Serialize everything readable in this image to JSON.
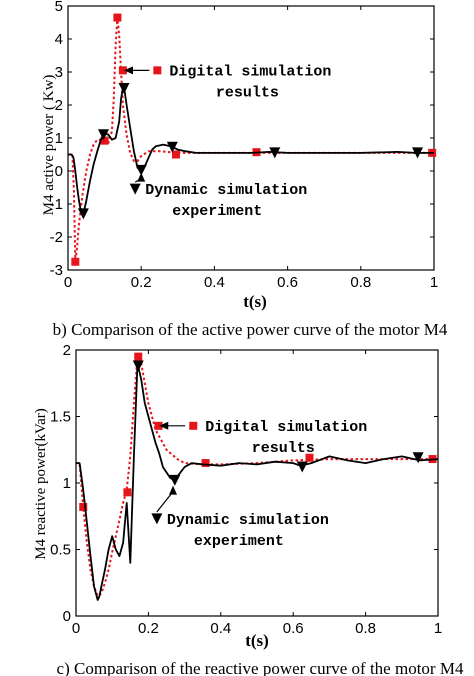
{
  "chart_data": [
    {
      "type": "line",
      "caption": "b) Comparison of the active power curve of the motor M4",
      "xlabel": "t(s)",
      "ylabel": "M4 active power ( Kw)",
      "xlim": [
        0,
        1
      ],
      "ylim": [
        -3,
        5
      ],
      "xticks": [
        "0",
        "0.2",
        "0.4",
        "0.6",
        "0.8",
        "1"
      ],
      "yticks": [
        "-3",
        "-2",
        "-1",
        "0",
        "1",
        "2",
        "3",
        "4",
        "5"
      ],
      "grid": false,
      "series": [
        {
          "name": "Digital simulation results",
          "color": "#e8141b",
          "style": "dotted",
          "marker": "square",
          "x": [
            0,
            0.008,
            0.012,
            0.016,
            0.02,
            0.024,
            0.03,
            0.04,
            0.05,
            0.06,
            0.07,
            0.08,
            0.09,
            0.1,
            0.11,
            0.12,
            0.125,
            0.13,
            0.135,
            0.14,
            0.145,
            0.15,
            0.16,
            0.17,
            0.18,
            0.19,
            0.2,
            0.22,
            0.25,
            0.3,
            0.35,
            0.4,
            0.5,
            0.6,
            0.7,
            0.8,
            0.9,
            1.0
          ],
          "y": [
            0.5,
            0.5,
            0.5,
            -0.6,
            -2.7,
            -2.4,
            -1.6,
            -0.7,
            0.0,
            0.5,
            0.8,
            0.95,
            0.95,
            0.85,
            0.85,
            1.2,
            2.2,
            3.8,
            4.65,
            4.1,
            3.0,
            2.0,
            1.1,
            0.55,
            0.3,
            0.3,
            0.45,
            0.6,
            0.6,
            0.55,
            0.55,
            0.55,
            0.55,
            0.55,
            0.55,
            0.55,
            0.55,
            0.55
          ],
          "marker_x": [
            0.02,
            0.1,
            0.135,
            0.15,
            0.295,
            0.515,
            0.995
          ],
          "marker_y": [
            -2.75,
            0.92,
            4.65,
            3.05,
            0.5,
            0.57,
            0.55
          ]
        },
        {
          "name": "Dynamic simulation experiment",
          "color": "#000000",
          "style": "solid",
          "marker": "triangle-down",
          "x": [
            0,
            0.01,
            0.015,
            0.02,
            0.025,
            0.03,
            0.035,
            0.04,
            0.045,
            0.05,
            0.06,
            0.07,
            0.08,
            0.09,
            0.1,
            0.11,
            0.12,
            0.13,
            0.14,
            0.145,
            0.15,
            0.155,
            0.16,
            0.17,
            0.18,
            0.19,
            0.2,
            0.21,
            0.22,
            0.23,
            0.24,
            0.26,
            0.28,
            0.3,
            0.32,
            0.35,
            0.4,
            0.45,
            0.5,
            0.55,
            0.6,
            0.7,
            0.8,
            0.9,
            0.95,
            1.0
          ],
          "y": [
            0.5,
            0.5,
            0.4,
            0.0,
            -0.5,
            -0.9,
            -1.2,
            -1.3,
            -1.15,
            -0.9,
            -0.3,
            0.2,
            0.6,
            0.95,
            1.15,
            1.1,
            0.95,
            1.0,
            1.5,
            2.2,
            2.5,
            2.4,
            2.0,
            1.3,
            0.6,
            0.1,
            0.0,
            0.15,
            0.4,
            0.65,
            0.75,
            0.8,
            0.75,
            0.65,
            0.6,
            0.55,
            0.55,
            0.55,
            0.55,
            0.58,
            0.55,
            0.55,
            0.55,
            0.58,
            0.55,
            0.55
          ],
          "marker_x": [
            0.042,
            0.097,
            0.153,
            0.2,
            0.285,
            0.565,
            0.955
          ],
          "marker_y": [
            -1.3,
            1.1,
            2.5,
            0.02,
            0.72,
            0.55,
            0.55
          ]
        }
      ],
      "annotations": [
        {
          "text": "Digital simulation",
          "text2": "results",
          "label_x": 0.255,
          "label_y": 3.05,
          "arrow_to_x": 0.153,
          "arrow_to_y": 3.05,
          "marker": "square"
        },
        {
          "text": "Dynamic simulation",
          "text2": "experiment",
          "label_x": 0.2,
          "label_y": -0.55,
          "arrow_to_x": 0.2,
          "arrow_to_y": -0.05,
          "marker": "triangle-down"
        }
      ]
    },
    {
      "type": "line",
      "caption": "c) Comparison of the reactive power curve of the motor M4",
      "xlabel": "t(s)",
      "ylabel": "M4 reactive power(kVar)",
      "xlim": [
        0,
        1
      ],
      "ylim": [
        0,
        2
      ],
      "xticks": [
        "0",
        "0.2",
        "0.4",
        "0.6",
        "0.8",
        "1"
      ],
      "yticks": [
        "0",
        "0.5",
        "1",
        "1.5",
        "2"
      ],
      "grid": false,
      "series": [
        {
          "name": "Digital simulation results",
          "color": "#e8141b",
          "style": "dotted",
          "marker": "square",
          "x": [
            0,
            0.01,
            0.02,
            0.03,
            0.04,
            0.05,
            0.06,
            0.07,
            0.08,
            0.09,
            0.1,
            0.11,
            0.12,
            0.13,
            0.14,
            0.15,
            0.16,
            0.17,
            0.18,
            0.19,
            0.2,
            0.22,
            0.25,
            0.28,
            0.3,
            0.35,
            0.4,
            0.5,
            0.6,
            0.7,
            0.8,
            0.9,
            1.0
          ],
          "y": [
            1.15,
            1.15,
            0.82,
            0.55,
            0.35,
            0.22,
            0.15,
            0.17,
            0.25,
            0.35,
            0.48,
            0.6,
            0.72,
            0.85,
            0.95,
            1.2,
            1.6,
            1.95,
            1.9,
            1.75,
            1.6,
            1.4,
            1.25,
            1.18,
            1.15,
            1.14,
            1.14,
            1.15,
            1.17,
            1.18,
            1.18,
            1.18,
            1.18
          ],
          "marker_x": [
            0.02,
            0.142,
            0.172,
            0.228,
            0.358,
            0.645,
            0.985
          ],
          "marker_y": [
            0.82,
            0.93,
            1.95,
            1.43,
            1.15,
            1.19,
            1.18
          ]
        },
        {
          "name": "Dynamic simulation experiment",
          "color": "#000000",
          "style": "solid",
          "marker": "triangle-down",
          "x": [
            0,
            0.01,
            0.02,
            0.03,
            0.04,
            0.05,
            0.06,
            0.065,
            0.07,
            0.08,
            0.09,
            0.1,
            0.11,
            0.12,
            0.13,
            0.14,
            0.15,
            0.16,
            0.17,
            0.18,
            0.19,
            0.2,
            0.21,
            0.22,
            0.23,
            0.24,
            0.25,
            0.26,
            0.27,
            0.28,
            0.3,
            0.32,
            0.35,
            0.4,
            0.45,
            0.5,
            0.55,
            0.6,
            0.62,
            0.65,
            0.7,
            0.75,
            0.8,
            0.85,
            0.9,
            0.95,
            1.0
          ],
          "y": [
            1.15,
            1.15,
            0.95,
            0.7,
            0.45,
            0.22,
            0.12,
            0.15,
            0.22,
            0.35,
            0.5,
            0.6,
            0.5,
            0.45,
            0.55,
            0.85,
            0.4,
            1.2,
            1.9,
            1.78,
            1.6,
            1.5,
            1.4,
            1.3,
            1.22,
            1.12,
            1.08,
            1.04,
            1.02,
            1.05,
            1.12,
            1.15,
            1.14,
            1.13,
            1.15,
            1.14,
            1.16,
            1.15,
            1.13,
            1.15,
            1.2,
            1.17,
            1.15,
            1.18,
            1.2,
            1.17,
            1.18
          ],
          "marker_x": [
            0.172,
            0.273,
            0.625,
            0.945
          ],
          "marker_y": [
            1.88,
            1.02,
            1.12,
            1.19
          ]
        }
      ],
      "annotations": [
        {
          "text": "Digital simulation",
          "text2": "results",
          "label_x": 0.335,
          "label_y": 1.43,
          "arrow_to_x": 0.23,
          "arrow_to_y": 1.43,
          "marker": "square"
        },
        {
          "text": "Dynamic simulation",
          "text2": "experiment",
          "label_x": 0.24,
          "label_y": 0.73,
          "arrow_to_x": 0.268,
          "arrow_to_y": 0.98,
          "marker": "triangle-down"
        }
      ]
    }
  ]
}
